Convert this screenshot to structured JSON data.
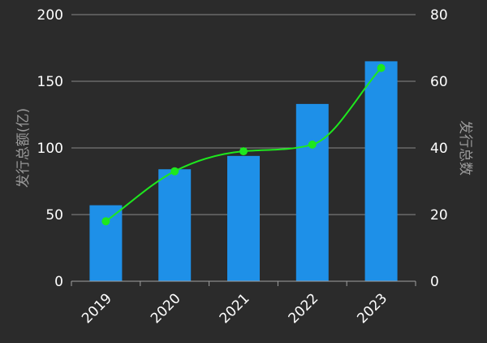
{
  "chart_data": {
    "type": "bar",
    "categories": [
      "2019",
      "2020",
      "2021",
      "2022",
      "2023"
    ],
    "series": [
      {
        "type": "bar",
        "axis": "left",
        "color": "#1e90e8",
        "values": [
          57,
          84,
          94,
          133,
          165
        ]
      },
      {
        "type": "line",
        "axis": "right",
        "color": "#1ee81e",
        "smooth": true,
        "values": [
          18,
          33,
          39,
          41,
          64
        ]
      }
    ],
    "ylabel": "发行总额(亿)",
    "ylabel_right": "发行总数",
    "ylim": [
      0,
      200
    ],
    "ylim_right": [
      0,
      80
    ],
    "yticks": [
      "0",
      "50",
      "100",
      "150",
      "200"
    ],
    "yticks_right": [
      "0",
      "20",
      "40",
      "60",
      "80"
    ],
    "grid": true,
    "background": "#2b2b2b"
  }
}
